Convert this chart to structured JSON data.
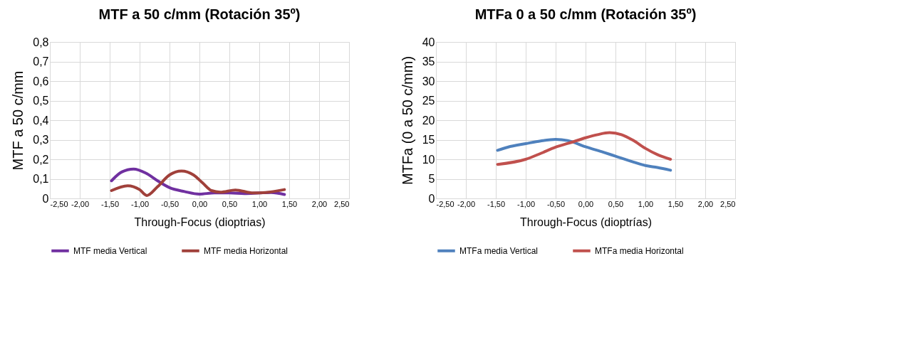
{
  "chart_data": [
    {
      "type": "line",
      "title": "MTF a 50 c/mm (Rotación 35º)",
      "xlabel": "Through-Focus (dioptrias)",
      "ylabel": "MTF a 50 c/mm",
      "grid": true,
      "legend": "bottom",
      "marker": "none",
      "line_style": "solid",
      "xlim": [
        -2.5,
        2.5
      ],
      "xticks": [
        {
          "value": -2.5,
          "label": "-2,50"
        },
        {
          "value": -2,
          "label": "-2,00"
        },
        {
          "value": -1.5,
          "label": "-1,50"
        },
        {
          "value": -1,
          "label": "-1,00"
        },
        {
          "value": -0.5,
          "label": "-0,50"
        },
        {
          "value": 0,
          "label": "0,00"
        },
        {
          "value": 0.5,
          "label": "0,50"
        },
        {
          "value": 1,
          "label": "1,00"
        },
        {
          "value": 1.5,
          "label": "1,50"
        },
        {
          "value": 2,
          "label": "2,00"
        },
        {
          "value": 2.5,
          "label": "2,50"
        }
      ],
      "ylim": [
        0,
        0.8
      ],
      "yticks": [
        0,
        {
          "value": 0.1,
          "label": "0,1"
        },
        {
          "value": 0.2,
          "label": "0,2"
        },
        {
          "value": 0.3,
          "label": "0,3"
        },
        {
          "value": 0.4,
          "label": "0,4"
        },
        {
          "value": 0.5,
          "label": "0,5"
        },
        {
          "value": 0.6,
          "label": "0,6"
        },
        {
          "value": 0.7,
          "label": "0,7"
        },
        {
          "value": 0.8,
          "label": "0,8"
        }
      ],
      "series": [
        {
          "name": "MTF media Vertical",
          "color": "#7030a0",
          "x": [
            -1.47,
            -1.3,
            -1.1,
            -0.9,
            -0.7,
            -0.5,
            -0.25,
            0,
            0.25,
            0.5,
            0.75,
            1.0,
            1.2,
            1.42
          ],
          "values": [
            0.09,
            0.135,
            0.15,
            0.13,
            0.09,
            0.055,
            0.035,
            0.022,
            0.028,
            0.028,
            0.025,
            0.028,
            0.03,
            0.02
          ]
        },
        {
          "name": "MTF media Horizontal",
          "color": "#a0403a",
          "x": [
            -1.47,
            -1.2,
            -1.0,
            -0.88,
            -0.7,
            -0.5,
            -0.3,
            -0.1,
            0.05,
            0.2,
            0.35,
            0.6,
            0.9,
            1.1,
            1.42
          ],
          "values": [
            0.04,
            0.065,
            0.045,
            0.015,
            0.06,
            0.12,
            0.14,
            0.12,
            0.08,
            0.04,
            0.032,
            0.043,
            0.028,
            0.03,
            0.045
          ]
        }
      ]
    },
    {
      "type": "line",
      "title": "MTFa 0 a 50 c/mm (Rotación 35º)",
      "xlabel": "Through-Focus (dioptrías)",
      "ylabel": "MTFa (0 a 50 c/mm)",
      "grid": true,
      "legend": "bottom",
      "marker": "none",
      "line_style": "solid",
      "xlim": [
        -2.5,
        2.5
      ],
      "xticks": [
        {
          "value": -2.5,
          "label": "-2,50"
        },
        {
          "value": -2,
          "label": "-2,00"
        },
        {
          "value": -1.5,
          "label": "-1,50"
        },
        {
          "value": -1,
          "label": "-1,00"
        },
        {
          "value": -0.5,
          "label": "-0,50"
        },
        {
          "value": 0,
          "label": "0,00"
        },
        {
          "value": 0.5,
          "label": "0,50"
        },
        {
          "value": 1,
          "label": "1,00"
        },
        {
          "value": 1.5,
          "label": "1,50"
        },
        {
          "value": 2,
          "label": "2,00"
        },
        {
          "value": 2.5,
          "label": "2,50"
        }
      ],
      "ylim": [
        0,
        40
      ],
      "yticks": [
        0,
        5,
        10,
        15,
        20,
        25,
        30,
        35,
        40
      ],
      "series": [
        {
          "name": "MTFa media Vertical",
          "color": "#4f81bd",
          "x": [
            -1.47,
            -1.3,
            -1.0,
            -0.75,
            -0.5,
            -0.3,
            0,
            0.3,
            0.5,
            0.8,
            1.0,
            1.2,
            1.42
          ],
          "values": [
            12.3,
            13.1,
            14.0,
            14.7,
            15.1,
            14.8,
            13.2,
            11.8,
            10.8,
            9.3,
            8.4,
            7.9,
            7.2
          ]
        },
        {
          "name": "MTFa media Horizontal",
          "color": "#c0504d",
          "x": [
            -1.47,
            -1.0,
            -0.75,
            -0.5,
            -0.2,
            0,
            0.2,
            0.4,
            0.6,
            0.8,
            1.0,
            1.2,
            1.42
          ],
          "values": [
            8.7,
            10.0,
            11.5,
            13.1,
            14.5,
            15.5,
            16.3,
            16.8,
            16.3,
            14.8,
            12.8,
            11.2,
            10.0
          ]
        }
      ]
    }
  ]
}
